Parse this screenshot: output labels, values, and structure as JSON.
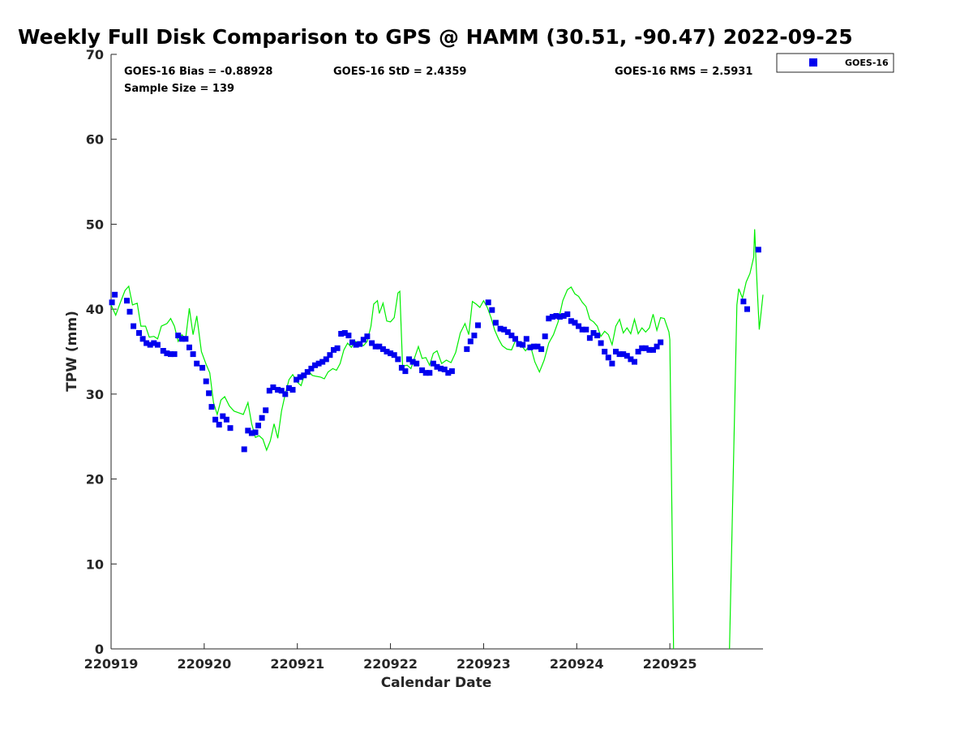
{
  "chart_data": {
    "type": "scatter",
    "title": "Weekly Full Disk Comparison to GPS @ HAMM (30.51, -90.47) 2022-09-25",
    "xlabel": "Calendar Date",
    "ylabel": "TPW (mm)",
    "xlim": [
      0,
      7
    ],
    "ylim": [
      0,
      70
    ],
    "x_ticks": [
      0,
      1,
      2,
      3,
      4,
      5,
      6
    ],
    "x_tick_labels": [
      "220919",
      "220920",
      "220921",
      "220922",
      "220923",
      "220924",
      "220925"
    ],
    "y_ticks": [
      0,
      10,
      20,
      30,
      40,
      50,
      60,
      70
    ],
    "y_tick_labels": [
      "0",
      "10",
      "20",
      "30",
      "40",
      "50",
      "60",
      "70"
    ],
    "legend_position": "outside-top-right",
    "legend": [
      {
        "label": "GOES-16",
        "marker": "square",
        "color": "#0000ee"
      }
    ],
    "stats": {
      "bias": "GOES-16 Bias = -0.88928",
      "std": "GOES-16 StD = 2.4359",
      "rms": "GOES-16 RMS = 2.5931",
      "sample": "Sample Size = 139"
    },
    "series": [
      {
        "name": "GOES-16",
        "kind": "markers",
        "color": "#0000ee",
        "points": [
          [
            0.01,
            40.8
          ],
          [
            0.04,
            41.7
          ],
          [
            0.17,
            41.0
          ],
          [
            0.2,
            39.7
          ],
          [
            0.24,
            38.0
          ],
          [
            0.3,
            37.2
          ],
          [
            0.34,
            36.5
          ],
          [
            0.38,
            36.0
          ],
          [
            0.42,
            35.8
          ],
          [
            0.46,
            36.0
          ],
          [
            0.5,
            35.8
          ],
          [
            0.56,
            35.1
          ],
          [
            0.6,
            34.8
          ],
          [
            0.64,
            34.7
          ],
          [
            0.68,
            34.7
          ],
          [
            0.72,
            36.9
          ],
          [
            0.76,
            36.5
          ],
          [
            0.8,
            36.5
          ],
          [
            0.84,
            35.5
          ],
          [
            0.88,
            34.7
          ],
          [
            0.92,
            33.6
          ],
          [
            0.98,
            33.1
          ],
          [
            1.02,
            31.5
          ],
          [
            1.05,
            30.1
          ],
          [
            1.08,
            28.5
          ],
          [
            1.12,
            27.0
          ],
          [
            1.16,
            26.4
          ],
          [
            1.2,
            27.4
          ],
          [
            1.24,
            27.0
          ],
          [
            1.28,
            26.0
          ],
          [
            1.43,
            23.5
          ],
          [
            1.47,
            25.7
          ],
          [
            1.51,
            25.4
          ],
          [
            1.55,
            25.5
          ],
          [
            1.58,
            26.3
          ],
          [
            1.62,
            27.2
          ],
          [
            1.66,
            28.1
          ],
          [
            1.7,
            30.4
          ],
          [
            1.74,
            30.8
          ],
          [
            1.79,
            30.5
          ],
          [
            1.83,
            30.4
          ],
          [
            1.87,
            30.0
          ],
          [
            1.91,
            30.7
          ],
          [
            1.95,
            30.5
          ],
          [
            1.99,
            31.7
          ],
          [
            2.03,
            32.0
          ],
          [
            2.07,
            32.2
          ],
          [
            2.11,
            32.6
          ],
          [
            2.15,
            33.0
          ],
          [
            2.19,
            33.4
          ],
          [
            2.23,
            33.6
          ],
          [
            2.27,
            33.8
          ],
          [
            2.31,
            34.1
          ],
          [
            2.35,
            34.6
          ],
          [
            2.39,
            35.2
          ],
          [
            2.43,
            35.4
          ],
          [
            2.47,
            37.1
          ],
          [
            2.51,
            37.2
          ],
          [
            2.55,
            36.9
          ],
          [
            2.59,
            36.1
          ],
          [
            2.63,
            35.8
          ],
          [
            2.67,
            35.9
          ],
          [
            2.71,
            36.4
          ],
          [
            2.75,
            36.8
          ],
          [
            2.8,
            36.0
          ],
          [
            2.84,
            35.6
          ],
          [
            2.88,
            35.6
          ],
          [
            2.92,
            35.3
          ],
          [
            2.96,
            35.0
          ],
          [
            3.0,
            34.8
          ],
          [
            3.04,
            34.6
          ],
          [
            3.08,
            34.1
          ],
          [
            3.12,
            33.1
          ],
          [
            3.16,
            32.7
          ],
          [
            3.2,
            34.1
          ],
          [
            3.24,
            33.8
          ],
          [
            3.28,
            33.6
          ],
          [
            3.34,
            32.8
          ],
          [
            3.38,
            32.5
          ],
          [
            3.42,
            32.5
          ],
          [
            3.46,
            33.6
          ],
          [
            3.5,
            33.2
          ],
          [
            3.54,
            33.0
          ],
          [
            3.58,
            32.9
          ],
          [
            3.62,
            32.5
          ],
          [
            3.66,
            32.7
          ],
          [
            3.82,
            35.3
          ],
          [
            3.86,
            36.2
          ],
          [
            3.9,
            36.9
          ],
          [
            3.94,
            38.1
          ],
          [
            4.05,
            40.8
          ],
          [
            4.09,
            39.9
          ],
          [
            4.13,
            38.4
          ],
          [
            4.18,
            37.7
          ],
          [
            4.22,
            37.6
          ],
          [
            4.26,
            37.3
          ],
          [
            4.3,
            36.9
          ],
          [
            4.34,
            36.5
          ],
          [
            4.38,
            35.9
          ],
          [
            4.42,
            35.8
          ],
          [
            4.46,
            36.5
          ],
          [
            4.5,
            35.5
          ],
          [
            4.54,
            35.6
          ],
          [
            4.58,
            35.6
          ],
          [
            4.62,
            35.3
          ],
          [
            4.66,
            36.8
          ],
          [
            4.7,
            38.9
          ],
          [
            4.74,
            39.1
          ],
          [
            4.78,
            39.2
          ],
          [
            4.82,
            39.1
          ],
          [
            4.86,
            39.2
          ],
          [
            4.9,
            39.4
          ],
          [
            4.94,
            38.6
          ],
          [
            4.98,
            38.4
          ],
          [
            5.02,
            38.0
          ],
          [
            5.06,
            37.6
          ],
          [
            5.1,
            37.6
          ],
          [
            5.14,
            36.6
          ],
          [
            5.18,
            37.2
          ],
          [
            5.22,
            36.9
          ],
          [
            5.26,
            36.0
          ],
          [
            5.3,
            35.0
          ],
          [
            5.34,
            34.3
          ],
          [
            5.38,
            33.6
          ],
          [
            5.42,
            35.0
          ],
          [
            5.46,
            34.7
          ],
          [
            5.5,
            34.7
          ],
          [
            5.54,
            34.5
          ],
          [
            5.58,
            34.1
          ],
          [
            5.62,
            33.8
          ],
          [
            5.66,
            35.0
          ],
          [
            5.7,
            35.4
          ],
          [
            5.74,
            35.4
          ],
          [
            5.78,
            35.2
          ],
          [
            5.82,
            35.2
          ],
          [
            5.86,
            35.6
          ],
          [
            5.9,
            36.1
          ],
          [
            6.79,
            40.9
          ],
          [
            6.83,
            40.0
          ],
          [
            6.95,
            47.0
          ]
        ]
      },
      {
        "name": "GPS",
        "kind": "line",
        "color": "#00ee00",
        "points": [
          [
            0.0,
            40.5
          ],
          [
            0.05,
            39.3
          ],
          [
            0.1,
            40.8
          ],
          [
            0.15,
            42.2
          ],
          [
            0.19,
            42.7
          ],
          [
            0.23,
            40.5
          ],
          [
            0.28,
            40.7
          ],
          [
            0.32,
            38.0
          ],
          [
            0.37,
            38.0
          ],
          [
            0.41,
            36.7
          ],
          [
            0.46,
            36.8
          ],
          [
            0.5,
            36.5
          ],
          [
            0.54,
            38.0
          ],
          [
            0.6,
            38.3
          ],
          [
            0.64,
            38.9
          ],
          [
            0.68,
            38.0
          ],
          [
            0.72,
            36.2
          ],
          [
            0.76,
            37.0
          ],
          [
            0.8,
            36.5
          ],
          [
            0.84,
            40.1
          ],
          [
            0.88,
            37.0
          ],
          [
            0.92,
            39.2
          ],
          [
            0.97,
            35.0
          ],
          [
            1.02,
            33.5
          ],
          [
            1.06,
            32.5
          ],
          [
            1.1,
            29.0
          ],
          [
            1.14,
            27.6
          ],
          [
            1.18,
            29.3
          ],
          [
            1.22,
            29.7
          ],
          [
            1.27,
            28.6
          ],
          [
            1.32,
            28.0
          ],
          [
            1.37,
            27.8
          ],
          [
            1.42,
            27.6
          ],
          [
            1.47,
            29.0
          ],
          [
            1.51,
            26.5
          ],
          [
            1.55,
            24.9
          ],
          [
            1.59,
            25.1
          ],
          [
            1.63,
            24.7
          ],
          [
            1.67,
            23.4
          ],
          [
            1.71,
            24.5
          ],
          [
            1.75,
            26.5
          ],
          [
            1.79,
            24.8
          ],
          [
            1.83,
            28.0
          ],
          [
            1.87,
            30.0
          ],
          [
            1.91,
            31.7
          ],
          [
            1.95,
            32.3
          ],
          [
            2.0,
            31.4
          ],
          [
            2.04,
            31.0
          ],
          [
            2.08,
            32.4
          ],
          [
            2.12,
            32.7
          ],
          [
            2.16,
            32.2
          ],
          [
            2.2,
            32.1
          ],
          [
            2.25,
            32.0
          ],
          [
            2.29,
            31.8
          ],
          [
            2.33,
            32.6
          ],
          [
            2.38,
            33.0
          ],
          [
            2.42,
            32.8
          ],
          [
            2.46,
            33.6
          ],
          [
            2.5,
            35.2
          ],
          [
            2.54,
            36.0
          ],
          [
            2.58,
            35.5
          ],
          [
            2.62,
            36.2
          ],
          [
            2.67,
            36.0
          ],
          [
            2.71,
            35.7
          ],
          [
            2.75,
            36.2
          ],
          [
            2.79,
            38.0
          ],
          [
            2.82,
            40.6
          ],
          [
            2.86,
            41.0
          ],
          [
            2.88,
            39.5
          ],
          [
            2.92,
            40.7
          ],
          [
            2.96,
            38.6
          ],
          [
            3.0,
            38.5
          ],
          [
            3.04,
            39.0
          ],
          [
            3.08,
            41.9
          ],
          [
            3.1,
            42.1
          ],
          [
            3.13,
            33.3
          ],
          [
            3.18,
            33.4
          ],
          [
            3.22,
            33.0
          ],
          [
            3.26,
            34.3
          ],
          [
            3.3,
            35.6
          ],
          [
            3.34,
            34.2
          ],
          [
            3.38,
            34.3
          ],
          [
            3.42,
            33.4
          ],
          [
            3.46,
            34.8
          ],
          [
            3.5,
            35.1
          ],
          [
            3.55,
            33.6
          ],
          [
            3.6,
            34.0
          ],
          [
            3.65,
            33.7
          ],
          [
            3.7,
            34.9
          ],
          [
            3.75,
            37.2
          ],
          [
            3.8,
            38.3
          ],
          [
            3.84,
            37.0
          ],
          [
            3.88,
            40.9
          ],
          [
            3.92,
            40.6
          ],
          [
            3.96,
            40.2
          ],
          [
            4.0,
            41.0
          ],
          [
            4.04,
            40.2
          ],
          [
            4.08,
            39.0
          ],
          [
            4.12,
            37.5
          ],
          [
            4.16,
            36.5
          ],
          [
            4.2,
            35.7
          ],
          [
            4.25,
            35.3
          ],
          [
            4.3,
            35.2
          ],
          [
            4.35,
            36.5
          ],
          [
            4.4,
            35.8
          ],
          [
            4.45,
            35.1
          ],
          [
            4.5,
            35.8
          ],
          [
            4.55,
            33.8
          ],
          [
            4.6,
            32.6
          ],
          [
            4.65,
            34.0
          ],
          [
            4.7,
            36.0
          ],
          [
            4.75,
            37.0
          ],
          [
            4.8,
            38.5
          ],
          [
            4.85,
            41.0
          ],
          [
            4.9,
            42.3
          ],
          [
            4.94,
            42.6
          ],
          [
            4.98,
            41.8
          ],
          [
            5.02,
            41.5
          ],
          [
            5.06,
            40.8
          ],
          [
            5.1,
            40.3
          ],
          [
            5.14,
            38.8
          ],
          [
            5.18,
            38.5
          ],
          [
            5.22,
            38.0
          ],
          [
            5.26,
            36.8
          ],
          [
            5.3,
            37.4
          ],
          [
            5.34,
            37.0
          ],
          [
            5.38,
            35.8
          ],
          [
            5.42,
            38.0
          ],
          [
            5.46,
            38.8
          ],
          [
            5.5,
            37.2
          ],
          [
            5.54,
            37.8
          ],
          [
            5.58,
            37.1
          ],
          [
            5.62,
            38.8
          ],
          [
            5.66,
            37.1
          ],
          [
            5.7,
            37.8
          ],
          [
            5.74,
            37.3
          ],
          [
            5.78,
            37.8
          ],
          [
            5.82,
            39.4
          ],
          [
            5.86,
            37.5
          ],
          [
            5.9,
            39.0
          ],
          [
            5.94,
            38.9
          ],
          [
            5.99,
            37.3
          ],
          [
            6.0,
            36.4
          ],
          [
            6.04,
            0
          ]
        ]
      },
      {
        "name": "GPS",
        "kind": "line",
        "color": "#00ee00",
        "points": [
          [
            6.64,
            0
          ],
          [
            6.72,
            40.5
          ],
          [
            6.74,
            42.4
          ],
          [
            6.78,
            41.3
          ],
          [
            6.82,
            43.2
          ],
          [
            6.86,
            44.2
          ],
          [
            6.9,
            46.1
          ],
          [
            6.91,
            49.4
          ],
          [
            6.94,
            42.0
          ],
          [
            6.96,
            37.6
          ],
          [
            7.0,
            41.7
          ]
        ]
      }
    ]
  }
}
